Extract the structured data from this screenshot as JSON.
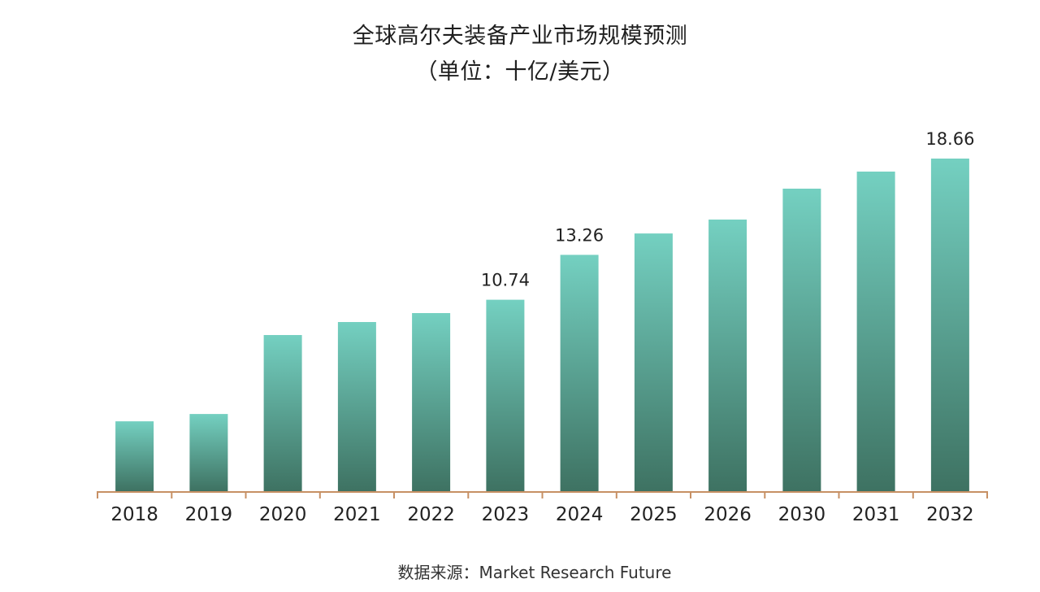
{
  "chart_data": {
    "type": "bar",
    "title": "全球高尔夫装备产业市场规模预测",
    "subtitle": "（单位：十亿/美元）",
    "xlabel": "",
    "ylabel": "",
    "categories": [
      "2018",
      "2019",
      "2020",
      "2021",
      "2022",
      "2023",
      "2024",
      "2025",
      "2026",
      "2030",
      "2031",
      "2032"
    ],
    "values": [
      3.92,
      4.33,
      8.76,
      9.49,
      9.99,
      10.74,
      13.26,
      14.46,
      15.24,
      16.97,
      17.93,
      18.66
    ],
    "data_labels": {
      "2023": "10.74",
      "2024": "13.26",
      "2032": "18.66"
    },
    "ylim": [
      0,
      18.66
    ],
    "grid": false,
    "legend": "none",
    "source": "数据来源：Market Research Future",
    "colors": {
      "bar_top": "#74D0C1",
      "bar_bottom": "#3E7262",
      "axis": "#C79064",
      "text": "#222222"
    }
  }
}
